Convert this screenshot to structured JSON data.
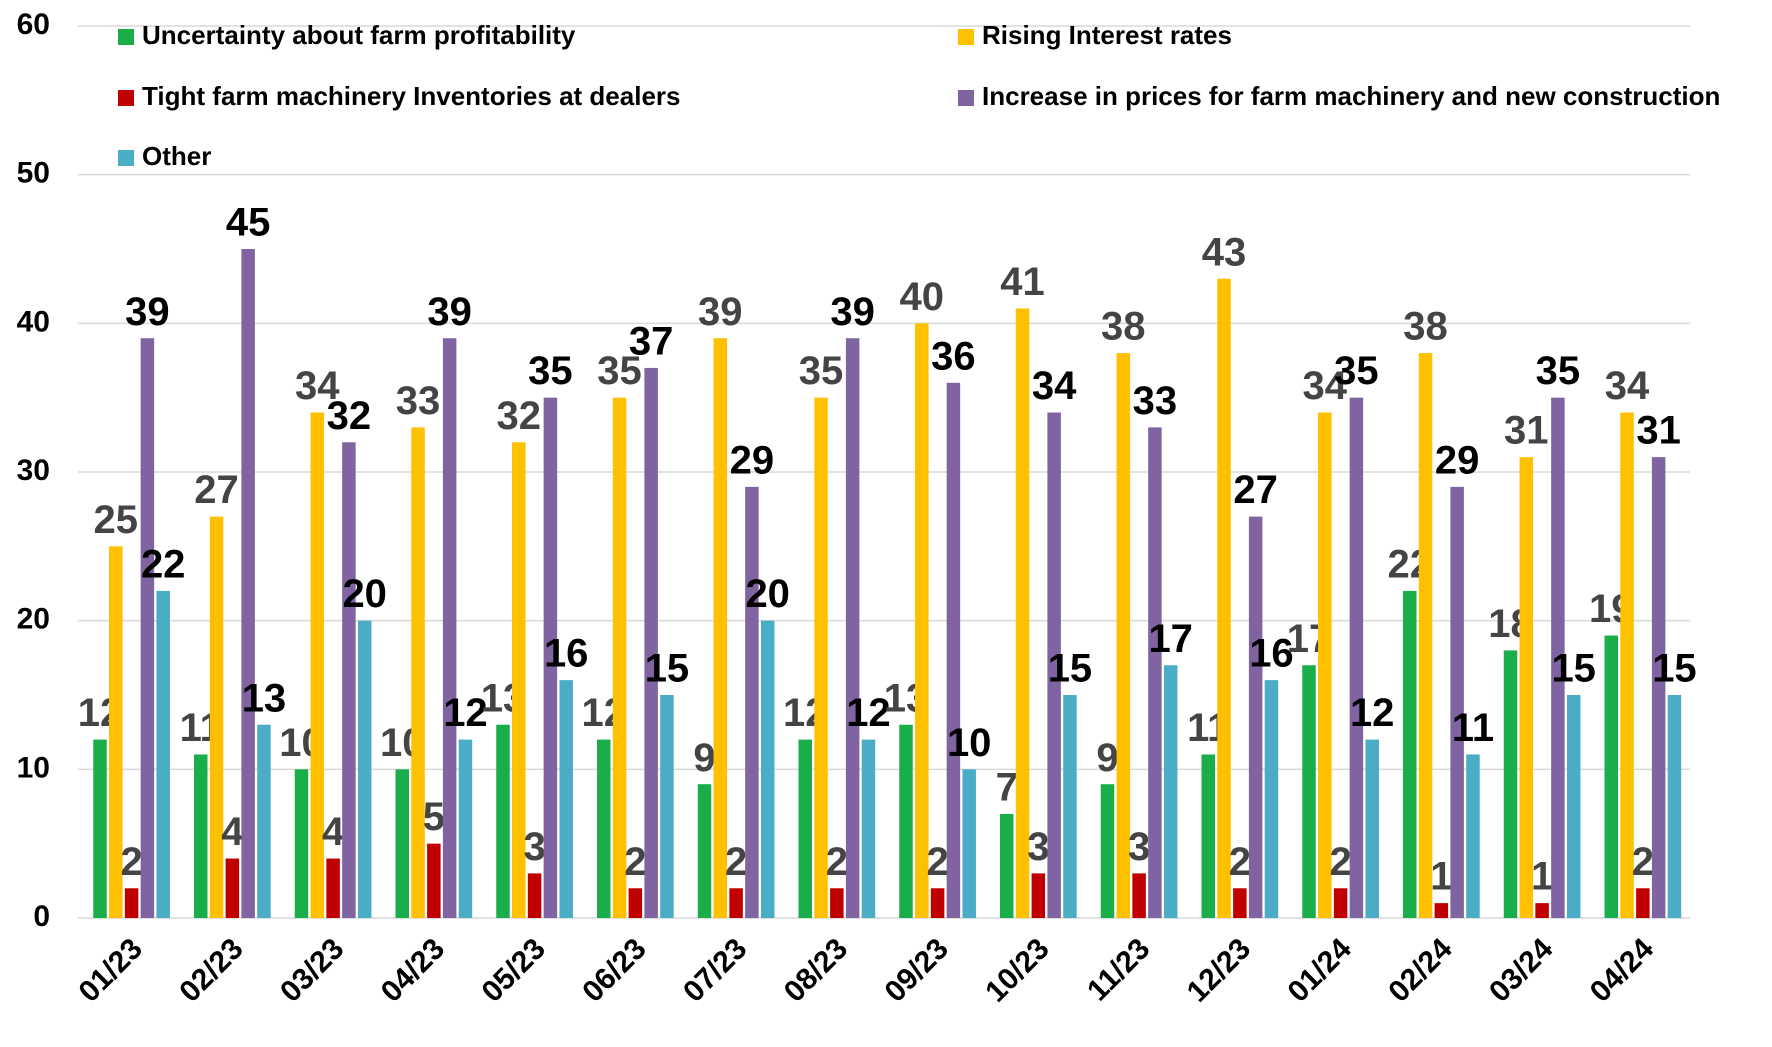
{
  "chart_data": {
    "type": "bar",
    "categories": [
      "01/23",
      "02/23",
      "03/23",
      "04/23",
      "05/23",
      "06/23",
      "07/23",
      "08/23",
      "09/23",
      "10/23",
      "11/23",
      "12/23",
      "01/24",
      "02/24",
      "03/24",
      "04/24"
    ],
    "series": [
      {
        "name": "Uncertainty about farm profitability",
        "color": "#1aae4a",
        "values": [
          12,
          11,
          10,
          10,
          13,
          12,
          9,
          12,
          13,
          7,
          9,
          11,
          17,
          22,
          18,
          19
        ]
      },
      {
        "name": "Rising Interest rates",
        "color": "#ffc000",
        "values": [
          25,
          27,
          34,
          33,
          32,
          35,
          39,
          35,
          40,
          41,
          38,
          43,
          34,
          38,
          31,
          34
        ]
      },
      {
        "name": "Tight farm machinery Inventories at dealers",
        "color": "#c00000",
        "values": [
          2,
          4,
          4,
          5,
          3,
          2,
          2,
          2,
          2,
          3,
          3,
          2,
          2,
          1,
          1,
          2
        ]
      },
      {
        "name": "Increase in prices for farm machinery and new construction",
        "color": "#8064a2",
        "values": [
          39,
          45,
          32,
          39,
          35,
          37,
          29,
          39,
          36,
          34,
          33,
          27,
          35,
          29,
          35,
          31
        ]
      },
      {
        "name": "Other",
        "color": "#4bacc6",
        "values": [
          22,
          13,
          20,
          12,
          16,
          15,
          20,
          12,
          10,
          15,
          17,
          16,
          12,
          11,
          15,
          15
        ]
      }
    ],
    "ylim": [
      0,
      60
    ],
    "yticks": [
      0,
      10,
      20,
      30,
      40,
      50,
      60
    ],
    "grid": true
  }
}
